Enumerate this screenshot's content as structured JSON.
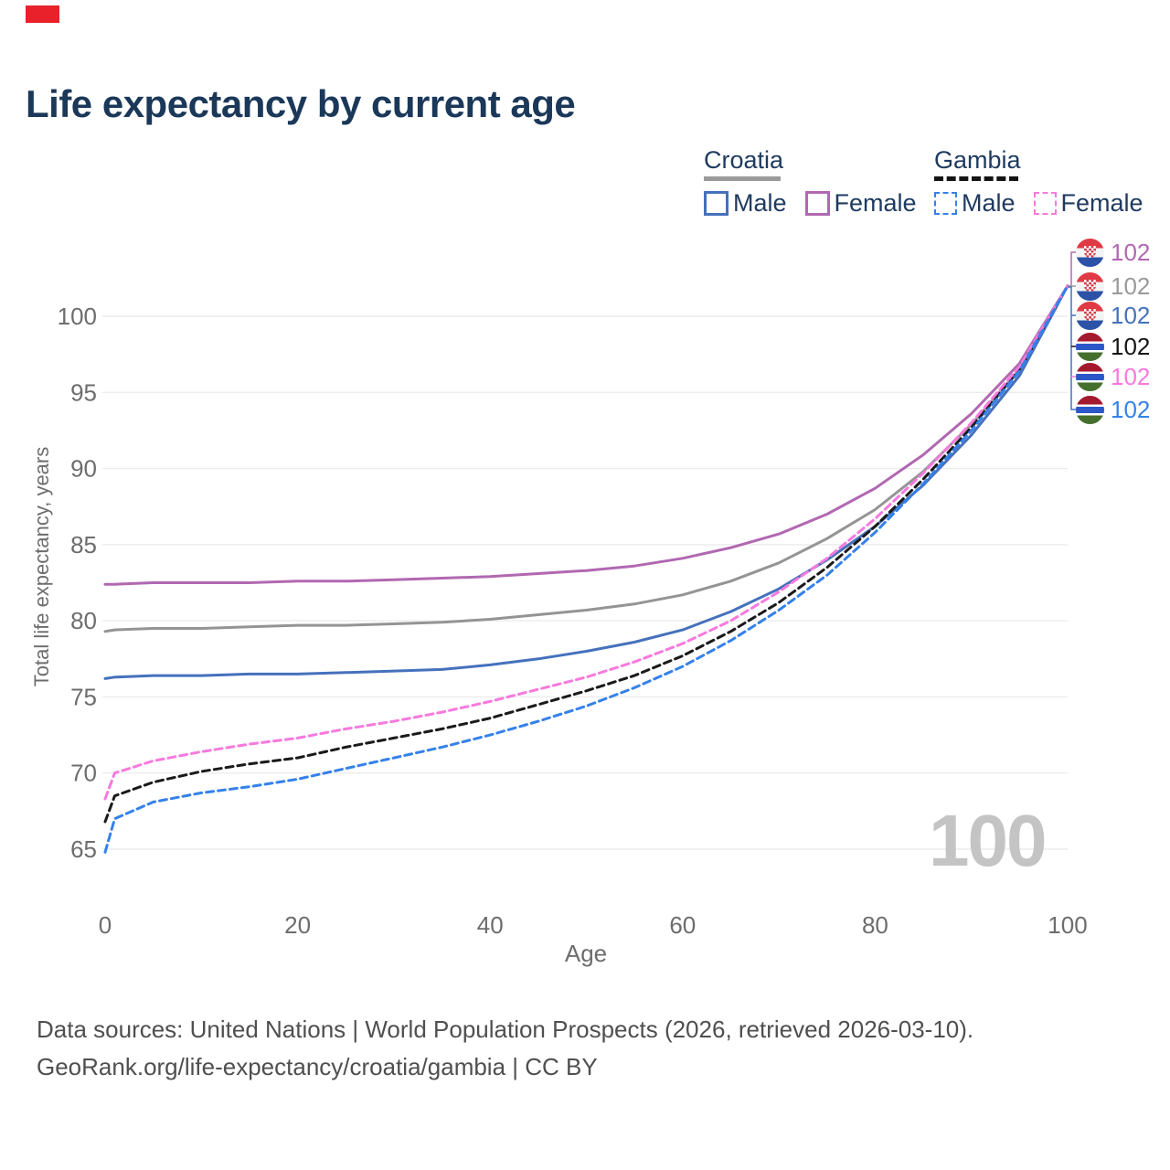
{
  "title": "Life expectancy by current age",
  "legend": {
    "groups": [
      {
        "country": "Croatia",
        "style": "solid",
        "underline_color": "#9a9a9a",
        "items": [
          {
            "label": "Male",
            "color": "#4571bc"
          },
          {
            "label": "Female",
            "color": "#b168b1"
          }
        ]
      },
      {
        "country": "Gambia",
        "style": "dashed",
        "underline_color": "#141414",
        "items": [
          {
            "label": "Male",
            "color": "#3581ea"
          },
          {
            "label": "Female",
            "color": "#f879de"
          }
        ]
      }
    ]
  },
  "colors": {
    "grid": "#ececec",
    "axis_text": "#6d6d6d",
    "title_text": "#1b3859",
    "watermark": "#c4c4c4"
  },
  "chart_data": {
    "type": "line",
    "title": "Life expectancy by current age",
    "xlabel": "Age",
    "ylabel": "Total life expectancy, years",
    "xlim": [
      0,
      100
    ],
    "ylim": [
      63.5,
      103.5
    ],
    "x_ticks": [
      0,
      20,
      40,
      60,
      80,
      100
    ],
    "y_ticks": [
      65,
      70,
      75,
      80,
      85,
      90,
      95,
      100
    ],
    "grid": "horizontal",
    "legend_position": "top-right",
    "x": [
      0,
      1,
      5,
      10,
      15,
      20,
      25,
      30,
      35,
      40,
      45,
      50,
      55,
      60,
      65,
      70,
      75,
      80,
      85,
      90,
      95,
      100
    ],
    "series": [
      {
        "name": "Croatia Female",
        "country": "Croatia",
        "sex": "Female",
        "style": "solid",
        "color": "#b168b1",
        "values": [
          82.4,
          82.4,
          82.5,
          82.5,
          82.5,
          82.6,
          82.6,
          82.7,
          82.8,
          82.9,
          83.1,
          83.3,
          83.6,
          84.1,
          84.8,
          85.7,
          87.0,
          88.7,
          90.9,
          93.6,
          96.9,
          102
        ]
      },
      {
        "name": "Croatia",
        "country": "Croatia",
        "sex": "All",
        "style": "solid",
        "color": "#949494",
        "values": [
          79.3,
          79.4,
          79.5,
          79.5,
          79.6,
          79.7,
          79.7,
          79.8,
          79.9,
          80.1,
          80.4,
          80.7,
          81.1,
          81.7,
          82.6,
          83.8,
          85.4,
          87.3,
          89.8,
          92.9,
          96.5,
          102
        ]
      },
      {
        "name": "Croatia Male",
        "country": "Croatia",
        "sex": "Male",
        "style": "solid",
        "color": "#4571bc",
        "values": [
          76.2,
          76.3,
          76.4,
          76.4,
          76.5,
          76.5,
          76.6,
          76.7,
          76.8,
          77.1,
          77.5,
          78.0,
          78.6,
          79.4,
          80.6,
          82.1,
          84.0,
          86.2,
          88.9,
          92.2,
          96.1,
          102
        ]
      },
      {
        "name": "Gambia",
        "country": "Gambia",
        "sex": "All",
        "style": "dashed",
        "color": "#1a1a1a",
        "values": [
          66.8,
          68.5,
          69.4,
          70.1,
          70.6,
          71.0,
          71.7,
          72.3,
          72.9,
          73.6,
          74.5,
          75.4,
          76.4,
          77.7,
          79.3,
          81.2,
          83.5,
          86.2,
          89.3,
          92.7,
          96.5,
          102
        ]
      },
      {
        "name": "Gambia Female",
        "country": "Gambia",
        "sex": "Female",
        "style": "dashed",
        "color": "#f879de",
        "values": [
          68.3,
          70.0,
          70.8,
          71.4,
          71.9,
          72.3,
          72.9,
          73.4,
          74.0,
          74.7,
          75.5,
          76.3,
          77.3,
          78.5,
          80.0,
          81.9,
          84.1,
          86.7,
          89.7,
          93.0,
          96.7,
          102
        ]
      },
      {
        "name": "Gambia Male",
        "country": "Gambia",
        "sex": "Male",
        "style": "dashed",
        "color": "#3581ea",
        "values": [
          64.8,
          67.0,
          68.1,
          68.7,
          69.1,
          69.6,
          70.3,
          71.0,
          71.7,
          72.5,
          73.4,
          74.4,
          75.6,
          77.0,
          78.7,
          80.7,
          83.0,
          85.8,
          89.0,
          92.5,
          96.4,
          102
        ]
      }
    ],
    "end_value_labels": [
      {
        "value": "102",
        "flag": "croatia",
        "color": "#b168b1"
      },
      {
        "value": "102",
        "flag": "croatia",
        "color": "#9a9a9a"
      },
      {
        "value": "102",
        "flag": "croatia",
        "color": "#4571bc"
      },
      {
        "value": "102",
        "flag": "gambia",
        "color": "#141414"
      },
      {
        "value": "102",
        "flag": "gambia",
        "color": "#f879de"
      },
      {
        "value": "102",
        "flag": "gambia",
        "color": "#3581ea"
      }
    ]
  },
  "watermark": "100",
  "footer": {
    "line1": "Data sources: United Nations | World Population Prospects (2026, retrieved 2026-03-10).",
    "line2": "GeoRank.org/life-expectancy/croatia/gambia | CC BY"
  }
}
